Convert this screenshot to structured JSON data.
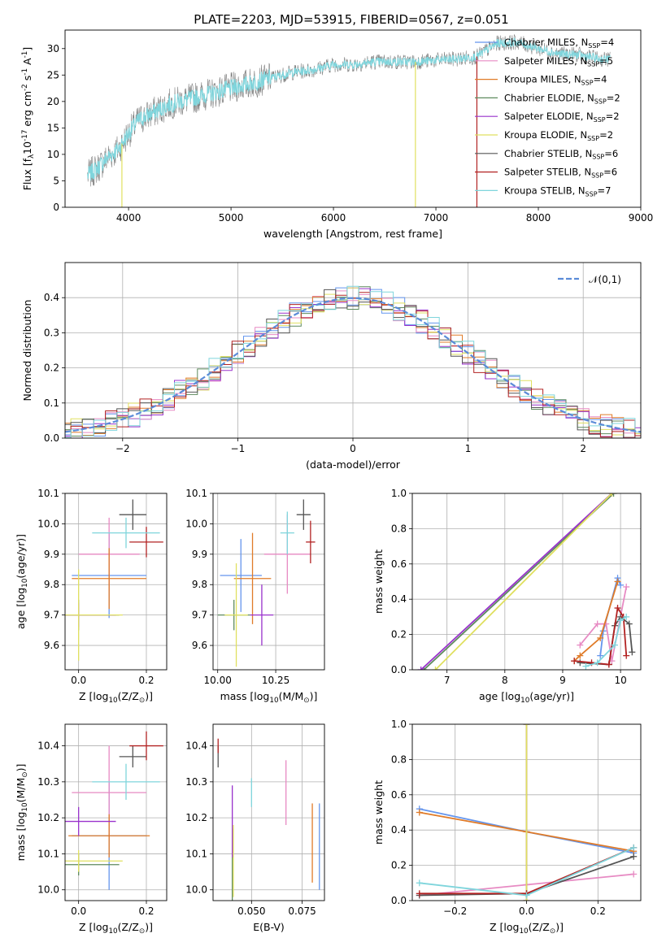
{
  "figure": {
    "title": "PLATE=2203, MJD=53915, FIBERID=0567, z=0.051"
  },
  "colors": {
    "Chabrier MILES": "#6495ed",
    "Salpeter MILES": "#e78ac3",
    "Kroupa MILES": "#e07b28",
    "Chabrier ELODIE": "#5e8a5e",
    "Salpeter ELODIE": "#9932cc",
    "Kroupa ELODIE": "#e0e060",
    "Chabrier STELIB": "#555555",
    "Salpeter STELIB": "#b22222",
    "Kroupa STELIB": "#7fd5dc",
    "data": "#808080",
    "normal": "#5b8bd8",
    "grid": "#b0b0b0"
  },
  "chart_data": [
    {
      "id": "spectrum",
      "type": "line",
      "xlabel": "wavelength [Angstrom, rest frame]",
      "ylabel": "Flux [f$_\\lambda$10$^{-17}$ erg cm$^{-2}$ s$^{-1}$ A$^{-1}$]",
      "xlim": [
        3380,
        9000
      ],
      "ylim": [
        0,
        33.5
      ],
      "xticks": [
        4000,
        5000,
        6000,
        7000,
        8000,
        9000
      ],
      "yticks": [
        0,
        5,
        10,
        15,
        20,
        25,
        30
      ],
      "grid": false,
      "legend": "top-right",
      "legend_entries": [
        "Chabrier MILES, N$_{SSP}$=4",
        "Salpeter MILES, N$_{SSP}$=5",
        "Kroupa MILES, N$_{SSP}$=4",
        "Chabrier ELODIE, N$_{SSP}$=2",
        "Salpeter ELODIE, N$_{SSP}$=2",
        "Kroupa ELODIE, N$_{SSP}$=2",
        "Chabrier STELIB, N$_{SSP}$=6",
        "Salpeter STELIB, N$_{SSP}$=6",
        "Kroupa STELIB, N$_{SSP}$=7"
      ],
      "continuum": {
        "x": [
          3600,
          3700,
          3800,
          3900,
          4000,
          4100,
          4200,
          4400,
          4600,
          4800,
          5000,
          5200,
          5400,
          5600,
          5800,
          6000,
          6200,
          6400,
          6600,
          6800,
          7000,
          7200,
          7400,
          7600,
          7800,
          8000,
          8200,
          8400,
          8600,
          8700
        ],
        "y": [
          6,
          7.5,
          9.5,
          11,
          14,
          16.5,
          17.5,
          19.5,
          20.5,
          21.5,
          22.5,
          23.5,
          24.5,
          25.5,
          26,
          27,
          27,
          27.5,
          27.5,
          27.5,
          27.8,
          28,
          28.5,
          31,
          31.2,
          30,
          29,
          28.8,
          28,
          28
        ]
      },
      "dips": [
        {
          "x": 3935,
          "y": 0,
          "series": "Kroupa ELODIE"
        },
        {
          "x": 6800,
          "y": 0,
          "series": "Kroupa ELODIE"
        },
        {
          "x": 7400,
          "y": 0,
          "series": "Salpeter STELIB"
        }
      ],
      "noise_amplitude": 2.5
    },
    {
      "id": "residuals",
      "type": "histogram",
      "xlabel": "(data-model)/error",
      "ylabel": "Normed distribution",
      "xlim": [
        -2.5,
        2.5
      ],
      "ylim": [
        0,
        0.5
      ],
      "xticks": [
        -2,
        -1,
        0,
        1,
        2
      ],
      "yticks": [
        0.0,
        0.1,
        0.2,
        0.3,
        0.4
      ],
      "grid": true,
      "legend": "top-right",
      "bin_width": 0.1,
      "normal_label": "$\\mathcal{N}(0,1)$",
      "spread": 0.035
    },
    {
      "id": "age-vs-Z",
      "type": "scatter",
      "xlabel": "Z [log$_{10}$(Z/Z$_\\odot$)]",
      "ylabel": "age  [log$_{10}$(age/yr)]",
      "xlim": [
        -0.04,
        0.26
      ],
      "ylim": [
        9.52,
        10.1
      ],
      "xticks": [
        0.0,
        0.2
      ],
      "yticks": [
        9.6,
        9.7,
        9.8,
        9.9,
        10.0,
        10.1
      ],
      "grid": true,
      "points": [
        {
          "series": "Chabrier MILES",
          "x": 0.09,
          "y": 9.83,
          "xerr": 0.11,
          "yerr": 0.14
        },
        {
          "series": "Salpeter MILES",
          "x": 0.09,
          "y": 9.9,
          "xerr": 0.09,
          "yerr": 0.12
        },
        {
          "series": "Kroupa MILES",
          "x": 0.09,
          "y": 9.82,
          "xerr": 0.11,
          "yerr": 0.1
        },
        {
          "series": "Chabrier ELODIE",
          "x": 0.0,
          "y": 9.7,
          "xerr": 0.12,
          "yerr": 0.05
        },
        {
          "series": "Salpeter ELODIE",
          "x": 0.0,
          "y": 9.7,
          "xerr": 0.11,
          "yerr": 0.04
        },
        {
          "series": "Kroupa ELODIE",
          "x": 0.0,
          "y": 9.7,
          "xerr": 0.13,
          "yerr": 0.15
        },
        {
          "series": "Chabrier STELIB",
          "x": 0.16,
          "y": 10.03,
          "xerr": 0.04,
          "yerr": 0.05
        },
        {
          "series": "Salpeter STELIB",
          "x": 0.2,
          "y": 9.94,
          "xerr": 0.05,
          "yerr": 0.05
        },
        {
          "series": "Kroupa STELIB",
          "x": 0.14,
          "y": 9.97,
          "xerr": 0.1,
          "yerr": 0.05
        }
      ]
    },
    {
      "id": "age-vs-mass",
      "type": "scatter",
      "xlabel": "mass [log$_{10}$(M/M$_\\odot$)]",
      "ylabel": "",
      "xlim": [
        9.98,
        10.46
      ],
      "ylim": [
        9.52,
        10.1
      ],
      "xticks": [
        10.0,
        10.25
      ],
      "yticks": [
        9.6,
        9.7,
        9.8,
        9.9,
        10.0,
        10.1
      ],
      "grid": true,
      "points": [
        {
          "series": "Chabrier MILES",
          "x": 10.1,
          "y": 9.83,
          "xerr": 0.09,
          "yerr": 0.12
        },
        {
          "series": "Salpeter MILES",
          "x": 10.3,
          "y": 9.9,
          "xerr": 0.1,
          "yerr": 0.13
        },
        {
          "series": "Kroupa MILES",
          "x": 10.15,
          "y": 9.82,
          "xerr": 0.08,
          "yerr": 0.15
        },
        {
          "series": "Chabrier ELODIE",
          "x": 10.07,
          "y": 9.7,
          "xerr": 0.07,
          "yerr": 0.05
        },
        {
          "series": "Salpeter ELODIE",
          "x": 10.19,
          "y": 9.7,
          "xerr": 0.05,
          "yerr": 0.1
        },
        {
          "series": "Kroupa ELODIE",
          "x": 10.08,
          "y": 9.7,
          "xerr": 0.05,
          "yerr": 0.17
        },
        {
          "series": "Chabrier STELIB",
          "x": 10.37,
          "y": 10.03,
          "xerr": 0.03,
          "yerr": 0.05
        },
        {
          "series": "Salpeter STELIB",
          "x": 10.4,
          "y": 9.94,
          "xerr": 0.02,
          "yerr": 0.07
        },
        {
          "series": "Kroupa STELIB",
          "x": 10.3,
          "y": 9.97,
          "xerr": 0.03,
          "yerr": 0.07
        }
      ]
    },
    {
      "id": "mass-weight-vs-age",
      "type": "line",
      "xlabel": "age  [log$_{10}$(age/yr)]",
      "ylabel": "mass weight",
      "xlim": [
        6.4,
        10.35
      ],
      "ylim": [
        0,
        1
      ],
      "xticks": [
        7,
        8,
        9,
        10
      ],
      "yticks": [
        0.0,
        0.2,
        0.4,
        0.6,
        0.8,
        1.0
      ],
      "grid": true,
      "series": [
        {
          "series": "Chabrier MILES",
          "x": [
            9.65,
            9.7,
            9.95,
            10.0
          ],
          "y": [
            0.08,
            0.22,
            0.52,
            0.48
          ]
        },
        {
          "series": "Salpeter MILES",
          "x": [
            9.3,
            9.6,
            9.75,
            9.85,
            10.1
          ],
          "y": [
            0.14,
            0.26,
            0.26,
            0.05,
            0.47
          ]
        },
        {
          "series": "Kroupa MILES",
          "x": [
            9.2,
            9.3,
            9.65,
            9.95
          ],
          "y": [
            0.05,
            0.08,
            0.18,
            0.5
          ]
        },
        {
          "series": "Chabrier ELODIE",
          "x": [
            6.6,
            9.88
          ],
          "y": [
            0.0,
            1.0
          ]
        },
        {
          "series": "Salpeter ELODIE",
          "x": [
            6.55,
            9.85
          ],
          "y": [
            0.0,
            1.0
          ]
        },
        {
          "series": "Kroupa ELODIE",
          "x": [
            6.8,
            9.85
          ],
          "y": [
            0.0,
            1.0
          ]
        },
        {
          "series": "Chabrier STELIB",
          "x": [
            9.3,
            9.8,
            9.9,
            10.0,
            10.15,
            10.2
          ],
          "y": [
            0.04,
            0.03,
            0.25,
            0.3,
            0.26,
            0.1
          ]
        },
        {
          "series": "Salpeter STELIB",
          "x": [
            9.2,
            9.5,
            9.8,
            9.95,
            10.05,
            10.1
          ],
          "y": [
            0.05,
            0.04,
            0.03,
            0.35,
            0.3,
            0.08
          ]
        },
        {
          "series": "Kroupa STELIB",
          "x": [
            9.4,
            9.6,
            9.9,
            10.0,
            10.1
          ],
          "y": [
            0.02,
            0.04,
            0.14,
            0.28,
            0.3
          ]
        }
      ]
    },
    {
      "id": "mass-vs-Z",
      "type": "scatter",
      "xlabel": "Z [log$_{10}$(Z/Z$_\\odot$)]",
      "ylabel": "mass [log$_{10}$(M/M$_\\odot$)]",
      "xlim": [
        -0.04,
        0.26
      ],
      "ylim": [
        9.97,
        10.46
      ],
      "xticks": [
        0.0,
        0.2
      ],
      "yticks": [
        10.0,
        10.1,
        10.2,
        10.3,
        10.4
      ],
      "grid": true,
      "points": [
        {
          "series": "Chabrier MILES",
          "x": 0.09,
          "y": 10.15,
          "xerr": 0.11,
          "yerr": 0.15
        },
        {
          "series": "Salpeter MILES",
          "x": 0.09,
          "y": 10.27,
          "xerr": 0.11,
          "yerr": 0.13
        },
        {
          "series": "Kroupa MILES",
          "x": 0.09,
          "y": 10.15,
          "xerr": 0.12,
          "yerr": 0.06
        },
        {
          "series": "Chabrier ELODIE",
          "x": 0.0,
          "y": 10.07,
          "xerr": 0.12,
          "yerr": 0.03
        },
        {
          "series": "Salpeter ELODIE",
          "x": 0.0,
          "y": 10.19,
          "xerr": 0.11,
          "yerr": 0.04
        },
        {
          "series": "Kroupa ELODIE",
          "x": 0.0,
          "y": 10.08,
          "xerr": 0.13,
          "yerr": 0.03
        },
        {
          "series": "Chabrier STELIB",
          "x": 0.16,
          "y": 10.37,
          "xerr": 0.04,
          "yerr": 0.03
        },
        {
          "series": "Salpeter STELIB",
          "x": 0.2,
          "y": 10.4,
          "xerr": 0.05,
          "yerr": 0.04
        },
        {
          "series": "Kroupa STELIB",
          "x": 0.14,
          "y": 10.3,
          "xerr": 0.1,
          "yerr": 0.05
        }
      ]
    },
    {
      "id": "mass-vs-ebv",
      "type": "scatter",
      "xlabel": "E(B-V)",
      "ylabel": "",
      "xlim": [
        0.031,
        0.086
      ],
      "ylim": [
        9.97,
        10.46
      ],
      "xticks": [
        0.05,
        0.075
      ],
      "yticks": [
        10.0,
        10.1,
        10.2,
        10.3,
        10.4
      ],
      "grid": true,
      "points": [
        {
          "series": "Chabrier MILES",
          "x": 0.0835,
          "y": 10.12,
          "xerr": 0,
          "yerr": 0.12
        },
        {
          "series": "Salpeter MILES",
          "x": 0.067,
          "y": 10.27,
          "xerr": 0,
          "yerr": 0.09
        },
        {
          "series": "Kroupa MILES",
          "x": 0.08,
          "y": 10.13,
          "xerr": 0,
          "yerr": 0.11
        },
        {
          "series": "Chabrier ELODIE",
          "x": 0.0405,
          "y": 10.07,
          "xerr": 0,
          "yerr": 0.1
        },
        {
          "series": "Salpeter ELODIE",
          "x": 0.0405,
          "y": 10.19,
          "xerr": 0,
          "yerr": 0.1
        },
        {
          "series": "Kroupa ELODIE",
          "x": 0.041,
          "y": 10.08,
          "xerr": 0,
          "yerr": 0.1
        },
        {
          "series": "Chabrier STELIB",
          "x": 0.0335,
          "y": 10.37,
          "xerr": 0,
          "yerr": 0.03
        },
        {
          "series": "Salpeter STELIB",
          "x": 0.0335,
          "y": 10.4,
          "xerr": 0,
          "yerr": 0.02
        },
        {
          "series": "Kroupa STELIB",
          "x": 0.05,
          "y": 10.27,
          "xerr": 0,
          "yerr": 0.04
        }
      ]
    },
    {
      "id": "mass-weight-vs-Z",
      "type": "line",
      "xlabel": "Z [log$_{10}$(Z/Z$_\\odot$)]",
      "ylabel": "mass weight",
      "xlim": [
        -0.32,
        0.32
      ],
      "ylim": [
        0,
        1
      ],
      "xticks": [
        -0.2,
        0.0,
        0.2
      ],
      "yticks": [
        0.0,
        0.2,
        0.4,
        0.6,
        0.8,
        1.0
      ],
      "grid": true,
      "series": [
        {
          "series": "Chabrier MILES",
          "x": [
            -0.3,
            0.0,
            0.3
          ],
          "y": [
            0.52,
            0.39,
            0.27
          ]
        },
        {
          "series": "Salpeter MILES",
          "x": [
            -0.3,
            0.0,
            0.3
          ],
          "y": [
            0.03,
            0.09,
            0.15
          ]
        },
        {
          "series": "Kroupa MILES",
          "x": [
            -0.3,
            0.0,
            0.3
          ],
          "y": [
            0.5,
            0.39,
            0.28
          ]
        },
        {
          "series": "Chabrier ELODIE",
          "x": [
            0.0,
            0.0
          ],
          "y": [
            0.0,
            1.0
          ]
        },
        {
          "series": "Salpeter ELODIE",
          "x": [
            0.0,
            0.0
          ],
          "y": [
            0.0,
            1.0
          ]
        },
        {
          "series": "Kroupa ELODIE",
          "x": [
            0.0,
            0.0
          ],
          "y": [
            0.0,
            1.0
          ]
        },
        {
          "series": "Chabrier STELIB",
          "x": [
            -0.3,
            0.0,
            0.3
          ],
          "y": [
            0.03,
            0.04,
            0.25
          ]
        },
        {
          "series": "Salpeter STELIB",
          "x": [
            -0.3,
            0.0,
            0.3
          ],
          "y": [
            0.04,
            0.04,
            0.3
          ]
        },
        {
          "series": "Kroupa STELIB",
          "x": [
            -0.3,
            0.0,
            0.3
          ],
          "y": [
            0.1,
            0.03,
            0.3
          ]
        }
      ]
    }
  ]
}
